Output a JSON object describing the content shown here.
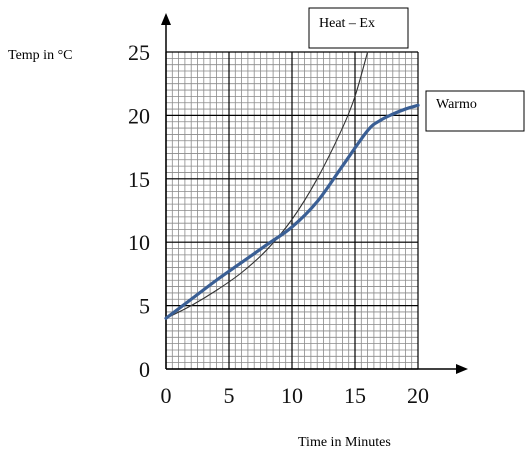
{
  "chart_data": {
    "type": "line",
    "ylabel": "Temp in °C",
    "xlabel": "Time in Minutes",
    "xlim": [
      0,
      20
    ],
    "ylim": [
      0,
      25
    ],
    "x_ticks": [
      "0",
      "5",
      "10",
      "15",
      "20"
    ],
    "y_ticks": [
      "0",
      "5",
      "10",
      "15",
      "20",
      "25"
    ],
    "grid": true,
    "series": [
      {
        "name": "Heat – Ex",
        "color": "#333333",
        "x": [
          0,
          2,
          4,
          6,
          8,
          10,
          12,
          14,
          15,
          16
        ],
        "y": [
          4,
          5.0,
          6.2,
          7.6,
          9.4,
          11.8,
          15.0,
          19.0,
          21.5,
          25
        ]
      },
      {
        "name": "Warmo",
        "color": "#3a5f95",
        "x": [
          0,
          2,
          4,
          6,
          8,
          10,
          12,
          14,
          16,
          17,
          18,
          19,
          20
        ],
        "y": [
          4,
          5.5,
          7.0,
          8.4,
          9.8,
          11.2,
          13.2,
          16.0,
          18.8,
          19.6,
          20.1,
          20.5,
          20.8
        ]
      }
    ]
  }
}
